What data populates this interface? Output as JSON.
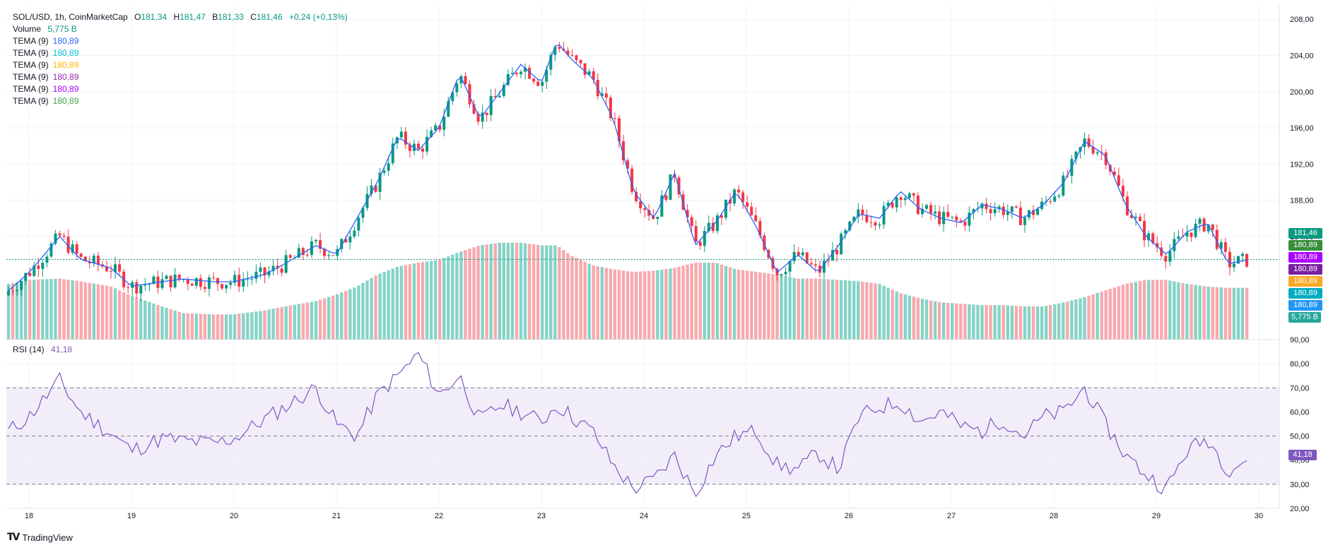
{
  "legend": {
    "symbol": "SOL/USD, 1h, CoinMarketCap",
    "o_label": "O",
    "o_value": "181,34",
    "h_label": "H",
    "h_value": "181,47",
    "l_label": "B",
    "l_value": "181,33",
    "c_label": "C",
    "c_value": "181,46",
    "change": "+0,24 (+0,13%)",
    "volume_label": "Volume",
    "volume_value": "5,775 B",
    "tema": [
      {
        "label": "TEMA (9)",
        "value": "180,89",
        "color": "#2962ff"
      },
      {
        "label": "TEMA (9)",
        "value": "180,89",
        "color": "#00bcd4"
      },
      {
        "label": "TEMA (9)",
        "value": "180,89",
        "color": "#ffb300"
      },
      {
        "label": "TEMA (9)",
        "value": "180,89",
        "color": "#9c27b0"
      },
      {
        "label": "TEMA (9)",
        "value": "180,89",
        "color": "#aa00ff"
      },
      {
        "label": "TEMA (9)",
        "value": "180,89",
        "color": "#43a047"
      }
    ]
  },
  "rsi_legend": {
    "label": "RSI (14)",
    "value": "41,18"
  },
  "badges": [
    {
      "text": "181,46",
      "color": "#089981"
    },
    {
      "text": "180,89",
      "color": "#388e3c"
    },
    {
      "text": "180,89",
      "color": "#aa00ff"
    },
    {
      "text": "180,89",
      "color": "#7b1fa2"
    },
    {
      "text": "180,89",
      "color": "#f9a825"
    },
    {
      "text": "180,89",
      "color": "#00acc1"
    },
    {
      "text": "180,89",
      "color": "#2196f3"
    },
    {
      "text": "5,775 B",
      "color": "#26a69a"
    },
    {
      "text": "41,18",
      "color": "#7e57c2"
    }
  ],
  "brand": "TradingView",
  "colors": {
    "up": "#089981",
    "down": "#f23645",
    "vol_up": "#86d3c6",
    "vol_down": "#f7a9ae",
    "rsi": "#7e57c2",
    "tema": "#2962ff"
  },
  "chart_data": [
    {
      "type": "candlestick",
      "title": "SOL/USD, 1h, CoinMarketCap",
      "x_tick_labels": [
        "18",
        "19",
        "20",
        "21",
        "22",
        "23",
        "24",
        "25",
        "26",
        "27",
        "28",
        "29",
        "30"
      ],
      "y_tick_labels": [
        "208,00",
        "204,00",
        "200,00",
        "196,00",
        "192,00",
        "188,00",
        "184,00"
      ],
      "y_ticks": [
        208,
        204,
        200,
        196,
        192,
        188,
        184
      ],
      "ylim": [
        172.6,
        209.5
      ],
      "last_price": 181.46,
      "grid": true,
      "x": [
        17.8,
        18.0,
        18.3,
        18.5,
        18.8,
        19.0,
        19.3,
        19.5,
        19.8,
        20.0,
        20.3,
        20.5,
        20.8,
        21.0,
        21.2,
        21.4,
        21.6,
        21.8,
        22.0,
        22.2,
        22.4,
        22.6,
        22.8,
        23.0,
        23.15,
        23.3,
        23.5,
        23.7,
        23.9,
        24.1,
        24.3,
        24.5,
        24.7,
        24.9,
        25.1,
        25.3,
        25.5,
        25.7,
        25.9,
        26.1,
        26.3,
        26.5,
        26.7,
        26.9,
        27.1,
        27.3,
        27.5,
        27.7,
        27.9,
        28.1,
        28.3,
        28.5,
        28.7,
        28.9,
        29.1,
        29.3,
        29.5,
        29.7,
        29.92
      ],
      "close": [
        178.0,
        180.0,
        184.0,
        181.5,
        180.5,
        178.5,
        179.0,
        179.3,
        179.0,
        179.0,
        179.8,
        181.0,
        183.0,
        182.0,
        186.0,
        190.0,
        195.0,
        193.5,
        196.0,
        202.0,
        197.0,
        200.0,
        203.0,
        201.0,
        205.5,
        203.5,
        201.5,
        197.0,
        189.0,
        186.0,
        191.0,
        183.0,
        185.5,
        189.0,
        185.0,
        180.0,
        182.0,
        180.0,
        183.0,
        186.5,
        186.0,
        189.0,
        187.0,
        186.0,
        185.5,
        187.5,
        187.0,
        186.0,
        187.5,
        190.0,
        194.5,
        193.0,
        187.5,
        184.0,
        182.0,
        184.5,
        185.5,
        181.0,
        181.46
      ],
      "volume": [
        0.42,
        0.45,
        0.46,
        0.44,
        0.4,
        0.33,
        0.25,
        0.2,
        0.19,
        0.19,
        0.22,
        0.25,
        0.29,
        0.34,
        0.4,
        0.49,
        0.55,
        0.58,
        0.6,
        0.66,
        0.71,
        0.73,
        0.73,
        0.71,
        0.71,
        0.63,
        0.56,
        0.53,
        0.51,
        0.52,
        0.54,
        0.58,
        0.58,
        0.53,
        0.51,
        0.49,
        0.46,
        0.46,
        0.45,
        0.44,
        0.42,
        0.35,
        0.31,
        0.28,
        0.27,
        0.26,
        0.26,
        0.25,
        0.25,
        0.28,
        0.32,
        0.37,
        0.42,
        0.45,
        0.45,
        0.42,
        0.4,
        0.39,
        0.39
      ]
    },
    {
      "type": "line",
      "title": "RSI (14)",
      "y_tick_labels": [
        "90,00",
        "80,00",
        "70,00",
        "60,00",
        "50,00",
        "40,00",
        "30,00",
        "20,00"
      ],
      "y_ticks": [
        90,
        80,
        70,
        60,
        50,
        40,
        30,
        20
      ],
      "ylim": [
        20,
        90
      ],
      "band": [
        30,
        70
      ],
      "x": [
        17.8,
        18.0,
        18.3,
        18.5,
        18.8,
        19.0,
        19.3,
        19.5,
        19.8,
        20.0,
        20.3,
        20.5,
        20.8,
        21.0,
        21.2,
        21.4,
        21.6,
        21.8,
        22.0,
        22.2,
        22.4,
        22.6,
        22.8,
        23.0,
        23.15,
        23.3,
        23.5,
        23.7,
        23.9,
        24.1,
        24.3,
        24.5,
        24.7,
        24.9,
        25.1,
        25.3,
        25.5,
        25.7,
        25.9,
        26.1,
        26.3,
        26.5,
        26.7,
        26.9,
        27.1,
        27.3,
        27.5,
        27.7,
        27.9,
        28.1,
        28.3,
        28.5,
        28.7,
        28.9,
        29.1,
        29.3,
        29.5,
        29.7,
        29.92
      ],
      "values": [
        52,
        58,
        73,
        60,
        51,
        44,
        49,
        48,
        47,
        49,
        57,
        62,
        70,
        55,
        50,
        67,
        75,
        84,
        67,
        75,
        56,
        63,
        60,
        56,
        63,
        58,
        52,
        38,
        28,
        32,
        42,
        26,
        42,
        50,
        52,
        38,
        36,
        43,
        36,
        58,
        62,
        64,
        56,
        60,
        54,
        52,
        57,
        50,
        58,
        60,
        70,
        55,
        42,
        34,
        28,
        44,
        49,
        36,
        41.18
      ]
    }
  ]
}
